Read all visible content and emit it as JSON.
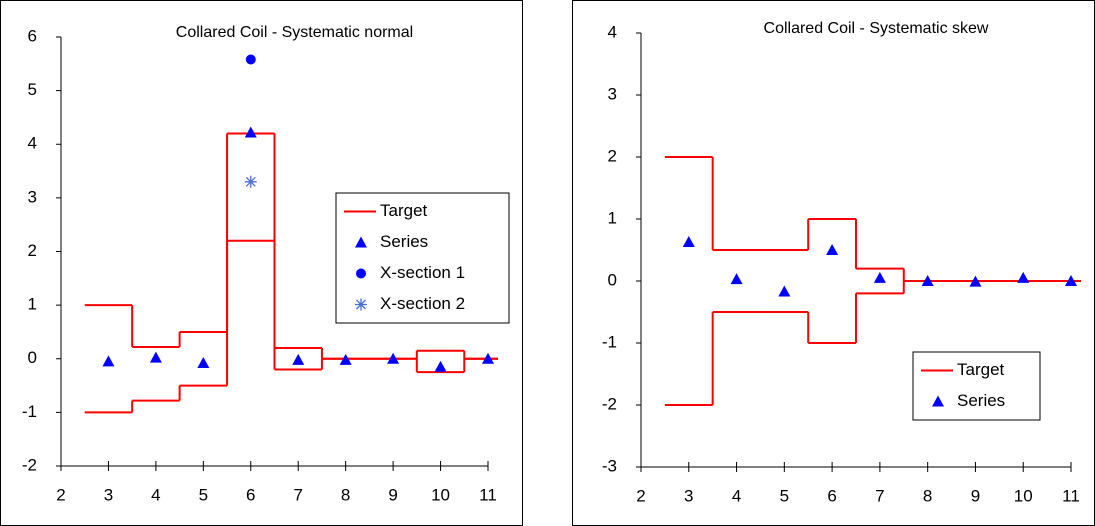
{
  "chart_data": [
    {
      "type": "scatter",
      "title": "Collared Coil - Systematic normal",
      "x": [
        3,
        4,
        5,
        6,
        7,
        8,
        9,
        10,
        11
      ],
      "xlim": [
        2,
        11
      ],
      "xticks": [
        2,
        3,
        4,
        5,
        6,
        7,
        8,
        9,
        10,
        11
      ],
      "ylim": [
        -2,
        6
      ],
      "yticks": [
        -2,
        -1,
        0,
        1,
        2,
        3,
        4,
        5,
        6
      ],
      "legend": "right",
      "target": {
        "name": "Target",
        "color": "#ff0000",
        "upper": [
          1,
          0.22,
          0.5,
          4.2,
          0.2,
          0,
          0,
          0.15,
          0
        ],
        "lower": [
          -1,
          -0.78,
          -0.5,
          2.2,
          -0.2,
          0,
          0,
          -0.25,
          0
        ]
      },
      "series": [
        {
          "name": "Series",
          "color": "#0000ff",
          "marker": "triangle",
          "values": [
            -0.05,
            0.02,
            -0.08,
            4.22,
            -0.02,
            -0.02,
            0,
            -0.15,
            0
          ]
        },
        {
          "name": "X-section 1",
          "color": "#0000ff",
          "marker": "circle",
          "values": [
            null,
            null,
            null,
            5.58,
            null,
            null,
            null,
            null,
            null
          ]
        },
        {
          "name": "X-section 2",
          "color": "#4a6fd8",
          "marker": "asterisk",
          "values": [
            null,
            null,
            null,
            3.3,
            null,
            null,
            null,
            null,
            null
          ]
        }
      ]
    },
    {
      "type": "scatter",
      "title": "Collared Coil - Systematic skew",
      "x": [
        3,
        4,
        5,
        6,
        7,
        8,
        9,
        10,
        11
      ],
      "xlim": [
        2,
        11
      ],
      "xticks": [
        2,
        3,
        4,
        5,
        6,
        7,
        8,
        9,
        10,
        11
      ],
      "ylim": [
        -3,
        4
      ],
      "yticks": [
        -3,
        -2,
        -1,
        0,
        1,
        2,
        3,
        4
      ],
      "legend": "lower right",
      "target": {
        "name": "Target",
        "color": "#ff0000",
        "upper": [
          2,
          0.5,
          0.5,
          1,
          0.2,
          0,
          0,
          0,
          0
        ],
        "lower": [
          -2,
          -0.5,
          -0.5,
          -1,
          -0.2,
          0,
          0,
          0,
          0
        ]
      },
      "series": [
        {
          "name": "Series",
          "color": "#0000ff",
          "marker": "triangle",
          "values": [
            0.63,
            0.03,
            -0.17,
            0.5,
            0.05,
            0,
            -0.01,
            0.05,
            0
          ]
        }
      ]
    }
  ]
}
